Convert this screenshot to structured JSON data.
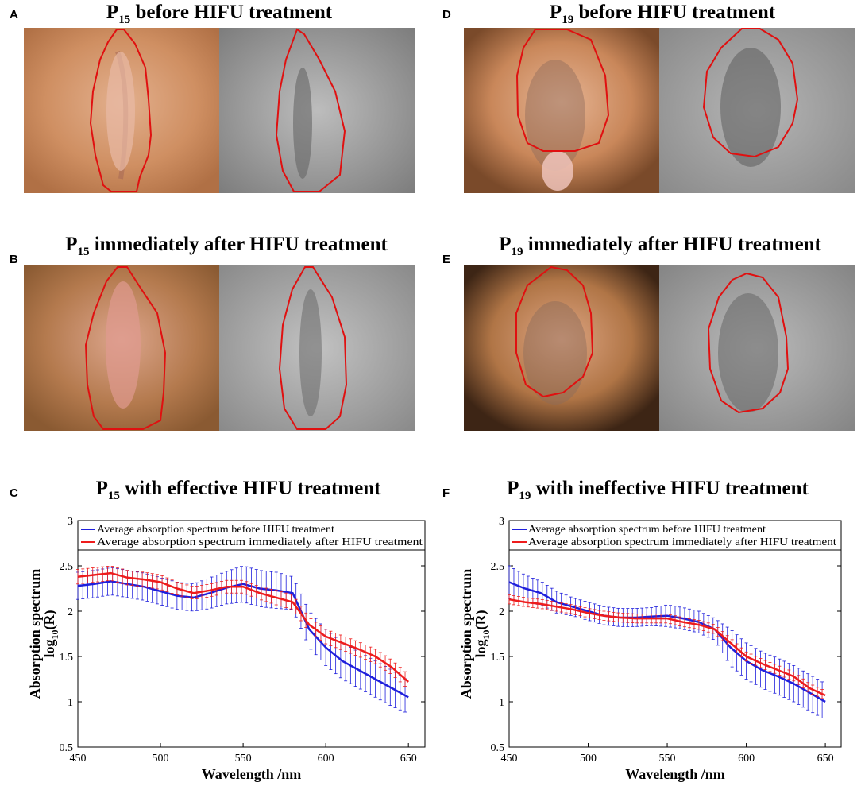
{
  "panels": {
    "A": {
      "letter": "A",
      "title_pre": "P",
      "title_sub": "15",
      "title_post": " before HIFU treatment"
    },
    "B": {
      "letter": "B",
      "title_pre": "P",
      "title_sub": "15",
      "title_post": " immediately after HIFU treatment"
    },
    "C": {
      "letter": "C",
      "title_pre": "P",
      "title_sub": "15",
      "title_post": " with effective HIFU treatment"
    },
    "D": {
      "letter": "D",
      "title_pre": "P",
      "title_sub": "19",
      "title_post": " before HIFU treatment"
    },
    "E": {
      "letter": "E",
      "title_pre": "P",
      "title_sub": "19",
      "title_post": " immediately after HIFU treatment"
    },
    "F": {
      "letter": "F",
      "title_pre": "P",
      "title_sub": "19",
      "title_post": " with ineffective HIFU treatment"
    }
  },
  "colors": {
    "before": "#1f1fdc",
    "after": "#ee1c1c",
    "outline": "#e01010",
    "skin_color": "#c98658",
    "skin_gray": "#9a9a9a"
  },
  "chart_data": [
    {
      "panel": "C",
      "type": "line",
      "xlabel": "Wavelength /nm",
      "ylabel_line1": "Absorption spectrum",
      "ylabel_line2_pre": "log",
      "ylabel_line2_sub": "10",
      "ylabel_line2_post": "(R)",
      "xlim": [
        450,
        660
      ],
      "ylim": [
        0.5,
        3
      ],
      "xticks": [
        450,
        500,
        550,
        600,
        650
      ],
      "xtick_labels": [
        "450",
        "500",
        "550",
        "600",
        "650"
      ],
      "yticks": [
        0.5,
        1,
        1.5,
        2,
        2.5,
        3
      ],
      "ytick_labels": [
        "0.5",
        "1",
        "1.5",
        "2",
        "2.5",
        "3"
      ],
      "legend_position": "top",
      "series": [
        {
          "name": "Average absorption spectrum before HIFU treatment",
          "color": "#1f1fdc",
          "x": [
            450,
            460,
            470,
            480,
            490,
            500,
            510,
            520,
            530,
            540,
            550,
            560,
            570,
            580,
            590,
            600,
            610,
            620,
            630,
            640,
            650
          ],
          "y": [
            2.28,
            2.3,
            2.33,
            2.3,
            2.27,
            2.22,
            2.17,
            2.15,
            2.2,
            2.26,
            2.3,
            2.25,
            2.23,
            2.2,
            1.8,
            1.6,
            1.45,
            1.35,
            1.25,
            1.15,
            1.05
          ],
          "err": [
            0.15,
            0.15,
            0.15,
            0.15,
            0.15,
            0.15,
            0.15,
            0.15,
            0.17,
            0.18,
            0.2,
            0.2,
            0.2,
            0.18,
            0.2,
            0.2,
            0.2,
            0.2,
            0.2,
            0.2,
            0.18
          ]
        },
        {
          "name": "Average absorption spectrum immediately after HIFU treatment",
          "color": "#ee1c1c",
          "x": [
            450,
            460,
            470,
            480,
            490,
            500,
            510,
            520,
            530,
            540,
            550,
            560,
            570,
            580,
            590,
            600,
            610,
            620,
            630,
            640,
            650
          ],
          "y": [
            2.38,
            2.4,
            2.42,
            2.37,
            2.35,
            2.32,
            2.25,
            2.2,
            2.23,
            2.27,
            2.27,
            2.2,
            2.15,
            2.1,
            1.85,
            1.72,
            1.65,
            1.58,
            1.5,
            1.38,
            1.22
          ],
          "err": [
            0.08,
            0.08,
            0.08,
            0.08,
            0.08,
            0.08,
            0.07,
            0.07,
            0.07,
            0.07,
            0.07,
            0.07,
            0.08,
            0.08,
            0.08,
            0.08,
            0.08,
            0.08,
            0.08,
            0.08,
            0.08
          ]
        }
      ]
    },
    {
      "panel": "F",
      "type": "line",
      "xlabel": "Wavelength /nm",
      "ylabel_line1": "Absorption spectrum",
      "ylabel_line2_pre": "log",
      "ylabel_line2_sub": "10",
      "ylabel_line2_post": "(R)",
      "xlim": [
        450,
        660
      ],
      "ylim": [
        0.5,
        3
      ],
      "xticks": [
        450,
        500,
        550,
        600,
        650
      ],
      "xtick_labels": [
        "450",
        "500",
        "550",
        "600",
        "650"
      ],
      "yticks": [
        0.5,
        1,
        1.5,
        2,
        2.5,
        3
      ],
      "ytick_labels": [
        "0.5",
        "1",
        "1.5",
        "2",
        "2.5",
        "3"
      ],
      "legend_position": "top",
      "series": [
        {
          "name": "Average absorption spectrum before HIFU treatment",
          "color": "#1f1fdc",
          "x": [
            450,
            460,
            470,
            480,
            490,
            500,
            510,
            520,
            530,
            540,
            550,
            560,
            570,
            580,
            590,
            600,
            610,
            620,
            630,
            640,
            650
          ],
          "y": [
            2.32,
            2.25,
            2.2,
            2.1,
            2.05,
            2.0,
            1.95,
            1.93,
            1.93,
            1.94,
            1.95,
            1.92,
            1.88,
            1.8,
            1.6,
            1.45,
            1.35,
            1.28,
            1.2,
            1.1,
            1.0
          ],
          "err": [
            0.18,
            0.15,
            0.13,
            0.12,
            0.1,
            0.1,
            0.1,
            0.1,
            0.1,
            0.1,
            0.12,
            0.12,
            0.12,
            0.12,
            0.2,
            0.2,
            0.2,
            0.2,
            0.2,
            0.2,
            0.2
          ]
        },
        {
          "name": "Average absorption spectrum immediately after HIFU treatment",
          "color": "#ee1c1c",
          "x": [
            450,
            460,
            470,
            480,
            490,
            500,
            510,
            520,
            530,
            540,
            550,
            560,
            570,
            580,
            590,
            600,
            610,
            620,
            630,
            640,
            650
          ],
          "y": [
            2.13,
            2.1,
            2.08,
            2.05,
            2.02,
            1.98,
            1.95,
            1.93,
            1.92,
            1.92,
            1.92,
            1.88,
            1.85,
            1.8,
            1.65,
            1.5,
            1.42,
            1.35,
            1.28,
            1.15,
            1.07
          ],
          "err": [
            0.05,
            0.05,
            0.05,
            0.05,
            0.05,
            0.05,
            0.05,
            0.05,
            0.05,
            0.05,
            0.05,
            0.05,
            0.05,
            0.05,
            0.05,
            0.05,
            0.05,
            0.05,
            0.05,
            0.05,
            0.05
          ]
        }
      ]
    }
  ]
}
